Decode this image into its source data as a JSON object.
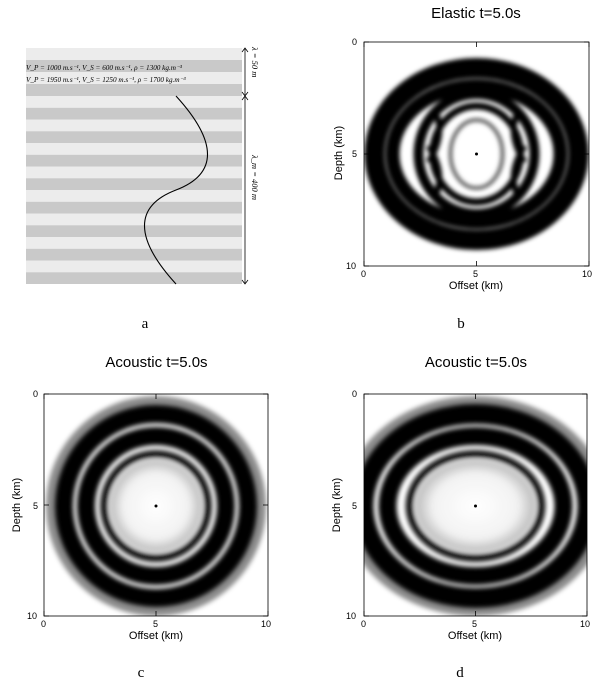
{
  "figure_a": {
    "eq_line1": "V_P = 1000 m.s⁻¹,  V_S = 600 m.s⁻¹,  ρ = 1300 kg.m⁻³",
    "eq_line2": "V_P = 1950 m.s⁻¹,  V_S = 1250 m.s⁻¹,  ρ = 1700 kg.m⁻³",
    "lambda_label": "λ = 50 m",
    "lambda_m_label": "λ_m = 400 m",
    "layer_light": "#ececec",
    "layer_dark": "#c9c9c9",
    "caption": "a"
  },
  "panels": {
    "b": {
      "title": "Elastic t=5.0s",
      "xlabel": "Offset (km)",
      "ylabel": "Depth (km)",
      "caption": "b"
    },
    "c": {
      "title": "Acoustic t=5.0s",
      "xlabel": "Offset (km)",
      "ylabel": "Depth (km)",
      "caption": "c"
    },
    "d": {
      "title": "Acoustic t=5.0s",
      "xlabel": "Offset (km)",
      "ylabel": "Depth (km)",
      "caption": "d"
    }
  },
  "ticks": {
    "x": [
      "0",
      "5",
      "10"
    ],
    "y": [
      "0",
      "5",
      "10"
    ]
  }
}
